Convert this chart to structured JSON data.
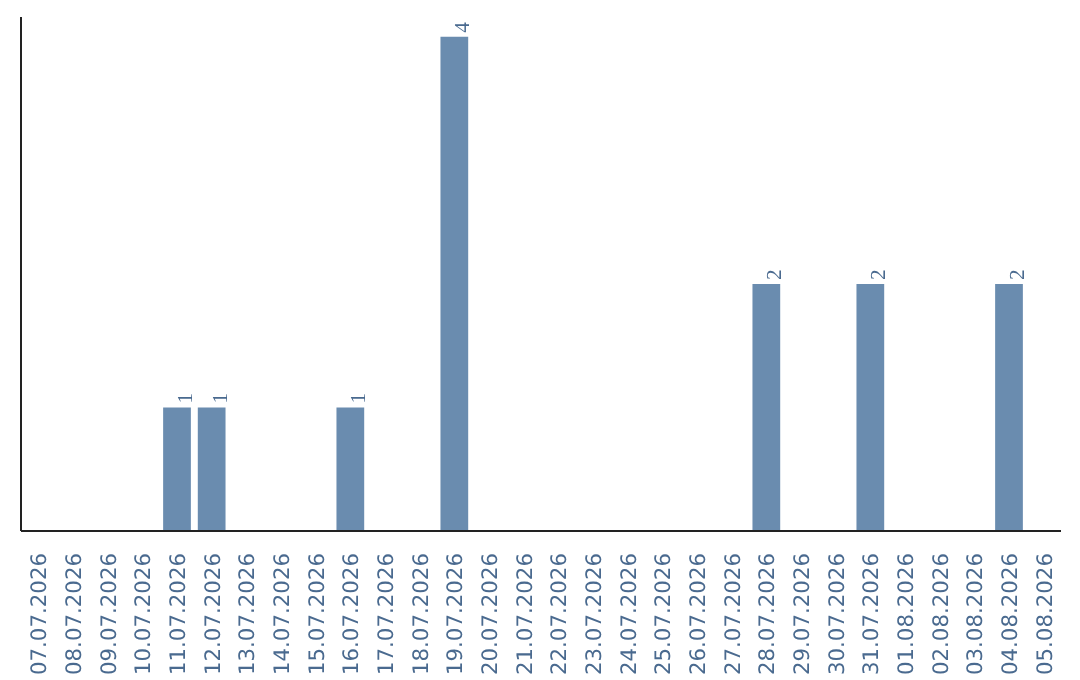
{
  "chart_data": {
    "type": "bar",
    "categories": [
      "07.07.2026",
      "08.07.2026",
      "09.07.2026",
      "10.07.2026",
      "11.07.2026",
      "12.07.2026",
      "13.07.2026",
      "14.07.2026",
      "15.07.2026",
      "16.07.2026",
      "17.07.2026",
      "18.07.2026",
      "19.07.2026",
      "20.07.2026",
      "21.07.2026",
      "22.07.2026",
      "23.07.2026",
      "24.07.2026",
      "25.07.2026",
      "26.07.2026",
      "27.07.2026",
      "28.07.2026",
      "29.07.2026",
      "30.07.2026",
      "31.07.2026",
      "01.08.2026",
      "02.08.2026",
      "03.08.2026",
      "04.08.2026",
      "05.08.2026"
    ],
    "values": [
      0,
      0,
      0,
      0,
      1,
      1,
      0,
      0,
      0,
      1,
      0,
      0,
      4,
      0,
      0,
      0,
      0,
      0,
      0,
      0,
      0,
      2,
      0,
      0,
      2,
      0,
      0,
      0,
      2,
      0
    ],
    "value_labels": [
      null,
      null,
      null,
      null,
      "1",
      "1",
      null,
      null,
      null,
      "1",
      null,
      null,
      "4",
      null,
      null,
      null,
      null,
      null,
      null,
      null,
      null,
      "2",
      null,
      null,
      "2",
      null,
      null,
      null,
      "2",
      null
    ],
    "color": "#6a8caf",
    "grid": false,
    "tick_labels": "x"
  }
}
